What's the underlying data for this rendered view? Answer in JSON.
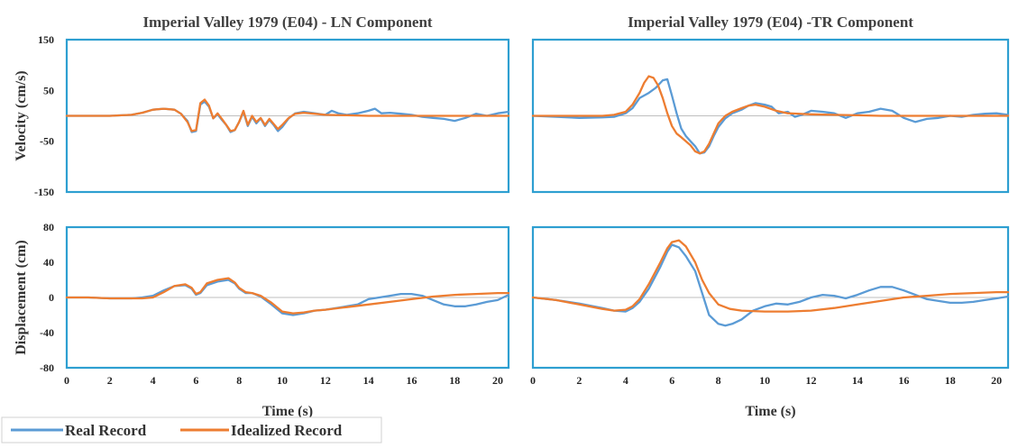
{
  "chart_data": [
    {
      "type": "line",
      "title": "Imperial Valley 1979 (E04) - LN Component",
      "ylabel": "Velocity (cm/s)",
      "xlabel": "",
      "xlim": [
        0,
        20.5
      ],
      "ylim": [
        -150,
        150
      ],
      "yticks": [
        "150",
        "50",
        "-50",
        "-150"
      ],
      "xticks": [],
      "grid": false,
      "series": [
        {
          "name": "Real Record",
          "color": "#5b9bd5",
          "x": [
            0,
            1,
            2,
            3,
            3.5,
            4,
            4.5,
            5,
            5.3,
            5.6,
            5.8,
            6,
            6.2,
            6.4,
            6.6,
            6.8,
            7,
            7.2,
            7.4,
            7.6,
            7.8,
            8,
            8.2,
            8.4,
            8.6,
            8.8,
            9,
            9.2,
            9.4,
            9.6,
            9.8,
            10,
            10.3,
            10.6,
            11,
            11.5,
            12,
            12.3,
            12.6,
            13,
            13.5,
            14,
            14.3,
            14.6,
            15,
            15.5,
            16,
            16.5,
            17,
            17.5,
            18,
            18.5,
            19,
            19.5,
            20,
            20.5
          ],
          "y": [
            0,
            0,
            0,
            2,
            6,
            12,
            14,
            12,
            4,
            -10,
            -32,
            -30,
            22,
            28,
            18,
            -5,
            3,
            -8,
            -18,
            -32,
            -28,
            -12,
            8,
            -20,
            -2,
            -15,
            -5,
            -20,
            -8,
            -18,
            -30,
            -22,
            -5,
            5,
            8,
            5,
            2,
            10,
            5,
            2,
            5,
            10,
            14,
            5,
            6,
            4,
            2,
            -2,
            -4,
            -6,
            -10,
            -4,
            4,
            0,
            5,
            8
          ]
        },
        {
          "name": "Idealized Record",
          "color": "#ed7d31",
          "x": [
            0,
            1,
            2,
            3,
            3.5,
            4,
            4.5,
            5,
            5.3,
            5.6,
            5.8,
            6,
            6.2,
            6.4,
            6.6,
            6.8,
            7,
            7.2,
            7.4,
            7.6,
            7.8,
            8,
            8.2,
            8.4,
            8.6,
            8.8,
            9,
            9.2,
            9.4,
            9.6,
            9.8,
            10,
            10.3,
            10.6,
            11,
            11.5,
            12,
            13,
            14,
            15,
            16,
            17,
            18,
            19,
            20,
            20.5
          ],
          "y": [
            0,
            0,
            0,
            2,
            6,
            12,
            14,
            12,
            4,
            -12,
            -30,
            -28,
            25,
            32,
            20,
            -5,
            5,
            -6,
            -18,
            -30,
            -28,
            -12,
            10,
            -18,
            0,
            -12,
            -4,
            -18,
            -6,
            -16,
            -26,
            -18,
            -4,
            4,
            6,
            4,
            2,
            1,
            0,
            0,
            0,
            0,
            0,
            0,
            0,
            0
          ]
        }
      ]
    },
    {
      "type": "line",
      "title": "Imperial Valley 1979 (E04) -TR Component",
      "ylabel": "",
      "xlabel": "",
      "xlim": [
        0,
        20.5
      ],
      "ylim": [
        -150,
        150
      ],
      "yticks": [],
      "xticks": [],
      "grid": false,
      "series": [
        {
          "name": "Real Record",
          "color": "#5b9bd5",
          "x": [
            0,
            1,
            2,
            3,
            3.5,
            4,
            4.3,
            4.6,
            5,
            5.3,
            5.6,
            5.8,
            6,
            6.2,
            6.4,
            6.6,
            6.8,
            7,
            7.2,
            7.4,
            7.6,
            7.8,
            8,
            8.3,
            8.6,
            9,
            9.3,
            9.6,
            10,
            10.3,
            10.6,
            11,
            11.3,
            11.6,
            12,
            12.5,
            13,
            13.5,
            14,
            14.5,
            15,
            15.5,
            16,
            16.5,
            17,
            17.5,
            18,
            18.5,
            19,
            19.5,
            20,
            20.5
          ],
          "y": [
            0,
            -2,
            -4,
            -3,
            -2,
            5,
            15,
            35,
            45,
            55,
            70,
            72,
            40,
            5,
            -25,
            -40,
            -50,
            -60,
            -74,
            -72,
            -60,
            -40,
            -22,
            -5,
            5,
            12,
            20,
            25,
            22,
            18,
            5,
            8,
            -2,
            2,
            10,
            8,
            5,
            -4,
            5,
            8,
            14,
            10,
            -4,
            -12,
            -6,
            -4,
            0,
            -2,
            2,
            4,
            5,
            2
          ]
        },
        {
          "name": "Idealized Record",
          "color": "#ed7d31",
          "x": [
            0,
            1,
            2,
            3,
            3.5,
            4,
            4.3,
            4.6,
            4.8,
            5,
            5.2,
            5.4,
            5.6,
            5.8,
            6,
            6.2,
            6.4,
            6.6,
            6.8,
            7,
            7.2,
            7.4,
            7.6,
            7.8,
            8,
            8.3,
            8.6,
            9,
            9.3,
            9.6,
            10,
            10.5,
            11,
            12,
            13,
            14,
            15,
            16,
            17,
            18,
            19,
            20,
            20.5
          ],
          "y": [
            0,
            0,
            0,
            0,
            2,
            8,
            22,
            45,
            65,
            78,
            75,
            60,
            35,
            5,
            -20,
            -35,
            -42,
            -50,
            -58,
            -70,
            -74,
            -70,
            -55,
            -35,
            -15,
            0,
            8,
            15,
            20,
            22,
            18,
            10,
            5,
            3,
            2,
            1,
            0,
            0,
            0,
            0,
            0,
            0,
            0
          ]
        }
      ]
    },
    {
      "type": "line",
      "title": "",
      "ylabel": "Displacement (cm)",
      "xlabel": "Time (s)",
      "xlim": [
        0,
        20.5
      ],
      "ylim": [
        -80,
        80
      ],
      "yticks": [
        "80",
        "40",
        "0",
        "-40",
        "-80"
      ],
      "xticks": [
        "0",
        "2",
        "4",
        "6",
        "8",
        "10",
        "12",
        "14",
        "16",
        "18",
        "20"
      ],
      "grid": false,
      "series": [
        {
          "name": "Real Record",
          "color": "#5b9bd5",
          "x": [
            0,
            1,
            2,
            3,
            3.5,
            4,
            4.5,
            5,
            5.5,
            5.8,
            6,
            6.2,
            6.5,
            7,
            7.5,
            7.8,
            8,
            8.3,
            8.6,
            9,
            9.5,
            10,
            10.5,
            11,
            11.5,
            12,
            12.5,
            13,
            13.5,
            14,
            14.5,
            15,
            15.5,
            16,
            16.5,
            17,
            17.5,
            18,
            18.5,
            19,
            19.5,
            20,
            20.5
          ],
          "y": [
            0,
            0,
            -1,
            -1,
            0,
            2,
            8,
            13,
            14,
            10,
            3,
            5,
            14,
            18,
            20,
            16,
            10,
            5,
            5,
            1,
            -8,
            -18,
            -20,
            -18,
            -15,
            -14,
            -12,
            -10,
            -8,
            -2,
            0,
            2,
            4,
            4,
            2,
            -3,
            -8,
            -10,
            -10,
            -8,
            -5,
            -3,
            3
          ]
        },
        {
          "name": "Idealized Record",
          "color": "#ed7d31",
          "x": [
            0,
            1,
            2,
            3,
            3.5,
            4,
            4.5,
            5,
            5.5,
            5.8,
            6,
            6.2,
            6.5,
            7,
            7.5,
            7.8,
            8,
            8.3,
            8.6,
            9,
            9.5,
            10,
            10.5,
            11,
            11.5,
            12,
            13,
            14,
            15,
            16,
            17,
            18,
            19,
            20,
            20.5
          ],
          "y": [
            0,
            0,
            -1,
            -1,
            -1,
            0,
            6,
            13,
            15,
            11,
            4,
            6,
            16,
            20,
            22,
            17,
            11,
            6,
            5,
            2,
            -6,
            -16,
            -18,
            -17,
            -15,
            -14,
            -11,
            -8,
            -5,
            -2,
            1,
            3,
            4,
            5,
            5
          ]
        }
      ]
    },
    {
      "type": "line",
      "title": "",
      "ylabel": "",
      "xlabel": "Time (s)",
      "xlim": [
        0,
        20.5
      ],
      "ylim": [
        -80,
        80
      ],
      "yticks": [],
      "xticks": [
        "0",
        "2",
        "4",
        "6",
        "8",
        "10",
        "12",
        "14",
        "16",
        "18",
        "20"
      ],
      "grid": false,
      "series": [
        {
          "name": "Real Record",
          "color": "#5b9bd5",
          "x": [
            0,
            1,
            2,
            3,
            3.5,
            4,
            4.3,
            4.6,
            5,
            5.5,
            5.8,
            6,
            6.3,
            6.6,
            7,
            7.3,
            7.6,
            8,
            8.3,
            8.6,
            9,
            9.5,
            10,
            10.5,
            11,
            11.5,
            12,
            12.5,
            13,
            13.5,
            14,
            14.5,
            15,
            15.5,
            16,
            16.5,
            17,
            17.5,
            18,
            18.5,
            19,
            19.5,
            20,
            20.5
          ],
          "y": [
            0,
            -3,
            -7,
            -12,
            -15,
            -16,
            -12,
            -5,
            10,
            35,
            52,
            60,
            57,
            47,
            30,
            5,
            -20,
            -30,
            -32,
            -30,
            -25,
            -15,
            -10,
            -7,
            -8,
            -5,
            0,
            3,
            2,
            -1,
            3,
            8,
            12,
            12,
            8,
            3,
            -2,
            -4,
            -6,
            -6,
            -5,
            -3,
            -1,
            1
          ]
        },
        {
          "name": "Idealized Record",
          "color": "#ed7d31",
          "x": [
            0,
            1,
            2,
            3,
            3.5,
            4,
            4.3,
            4.6,
            5,
            5.5,
            5.8,
            6,
            6.3,
            6.6,
            7,
            7.3,
            7.6,
            8,
            8.5,
            9,
            10,
            11,
            12,
            13,
            14,
            15,
            16,
            17,
            18,
            19,
            20,
            20.5
          ],
          "y": [
            0,
            -3,
            -8,
            -13,
            -15,
            -14,
            -10,
            -2,
            15,
            40,
            56,
            63,
            65,
            58,
            40,
            20,
            5,
            -8,
            -13,
            -15,
            -16,
            -16,
            -15,
            -12,
            -8,
            -4,
            0,
            2,
            4,
            5,
            6,
            6
          ]
        }
      ]
    }
  ]
}
